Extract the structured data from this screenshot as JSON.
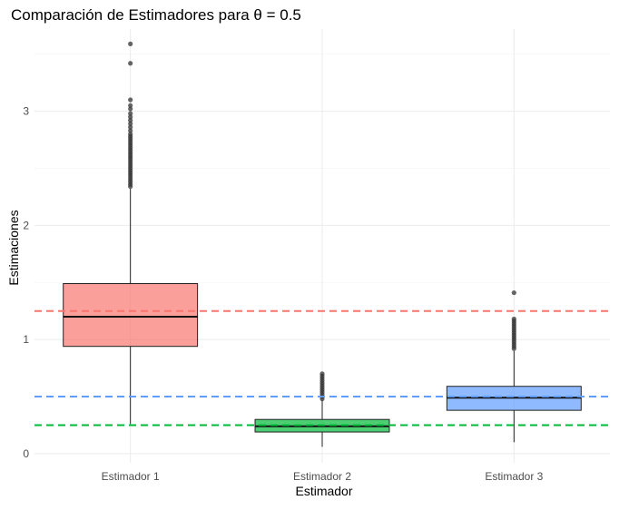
{
  "chart_data": {
    "type": "boxplot",
    "title": "Comparación de Estimadores para θ = 0.5",
    "xlabel": "Estimador",
    "ylabel": "Estimaciones",
    "categories": [
      "Estimador 1",
      "Estimador 2",
      "Estimador 3"
    ],
    "ylim": [
      -0.08,
      3.72
    ],
    "y_ticks": [
      0,
      1,
      2,
      3
    ],
    "grid": true,
    "legend": "none",
    "boxes": [
      {
        "category": "Estimador 1",
        "color": "#f8766d",
        "whisker_low": 0.26,
        "q1": 0.94,
        "median": 1.2,
        "q3": 1.49,
        "whisker_high": 2.32,
        "outliers": [
          2.34,
          2.36,
          2.38,
          2.4,
          2.42,
          2.44,
          2.46,
          2.48,
          2.5,
          2.52,
          2.54,
          2.56,
          2.58,
          2.6,
          2.62,
          2.64,
          2.66,
          2.68,
          2.7,
          2.72,
          2.74,
          2.76,
          2.78,
          2.8,
          2.83,
          2.86,
          2.89,
          2.92,
          2.95,
          2.98,
          3.02,
          3.05,
          3.1,
          3.42,
          3.59
        ]
      },
      {
        "category": "Estimador 2",
        "color": "#00ba38",
        "whisker_low": 0.06,
        "q1": 0.19,
        "median": 0.24,
        "q3": 0.3,
        "whisker_high": 0.47,
        "outliers": [
          0.48,
          0.5,
          0.52,
          0.54,
          0.56,
          0.58,
          0.6,
          0.62,
          0.64,
          0.66,
          0.68,
          0.7
        ]
      },
      {
        "category": "Estimador 3",
        "color": "#619cff",
        "whisker_low": 0.1,
        "q1": 0.38,
        "median": 0.49,
        "q3": 0.59,
        "whisker_high": 0.9,
        "outliers": [
          0.92,
          0.94,
          0.96,
          0.98,
          1.0,
          1.02,
          1.04,
          1.06,
          1.08,
          1.1,
          1.12,
          1.14,
          1.16,
          1.18,
          1.41
        ]
      }
    ],
    "reference_lines": [
      {
        "value": 1.25,
        "color": "#f8766d",
        "style": "dashed"
      },
      {
        "value": 0.5,
        "color": "#619cff",
        "style": "dashed"
      },
      {
        "value": 0.25,
        "color": "#00ba38",
        "style": "dashed"
      }
    ]
  }
}
